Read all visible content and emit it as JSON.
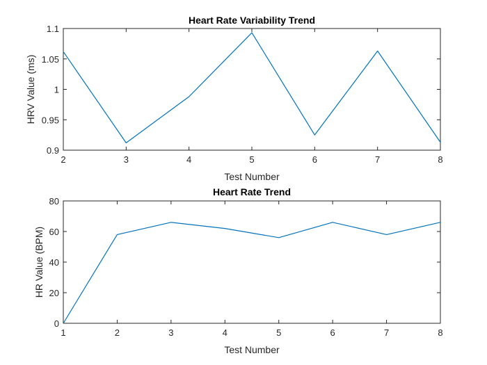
{
  "chart_data": [
    {
      "type": "line",
      "title": "Heart Rate Variability Trend",
      "xlabel": "Test Number",
      "ylabel": "HRV Value (ms)",
      "xlim": [
        2,
        8
      ],
      "ylim": [
        0.9,
        1.1
      ],
      "xticks": [
        2,
        3,
        4,
        5,
        6,
        7,
        8
      ],
      "yticks": [
        0.9,
        0.95,
        1,
        1.05,
        1.1
      ],
      "ytick_labels": [
        "0.9",
        "0.95",
        "1",
        "1.05",
        "1.1"
      ],
      "grid": false,
      "color": "#0072BD",
      "x": [
        2,
        3,
        4,
        5,
        6,
        7,
        8
      ],
      "y": [
        1.062,
        0.912,
        0.988,
        1.093,
        0.925,
        1.063,
        0.913
      ]
    },
    {
      "type": "line",
      "title": "Heart Rate Trend",
      "xlabel": "Test Number",
      "ylabel": "HR Value (BPM)",
      "xlim": [
        1,
        8
      ],
      "ylim": [
        0,
        80
      ],
      "xticks": [
        1,
        2,
        3,
        4,
        5,
        6,
        7,
        8
      ],
      "yticks": [
        0,
        20,
        40,
        60,
        80
      ],
      "ytick_labels": [
        "0",
        "20",
        "40",
        "60",
        "80"
      ],
      "grid": false,
      "color": "#0072BD",
      "x": [
        1,
        2,
        3,
        4,
        5,
        6,
        7,
        8
      ],
      "y": [
        0,
        58,
        66,
        62,
        56,
        66,
        58,
        66
      ]
    }
  ]
}
